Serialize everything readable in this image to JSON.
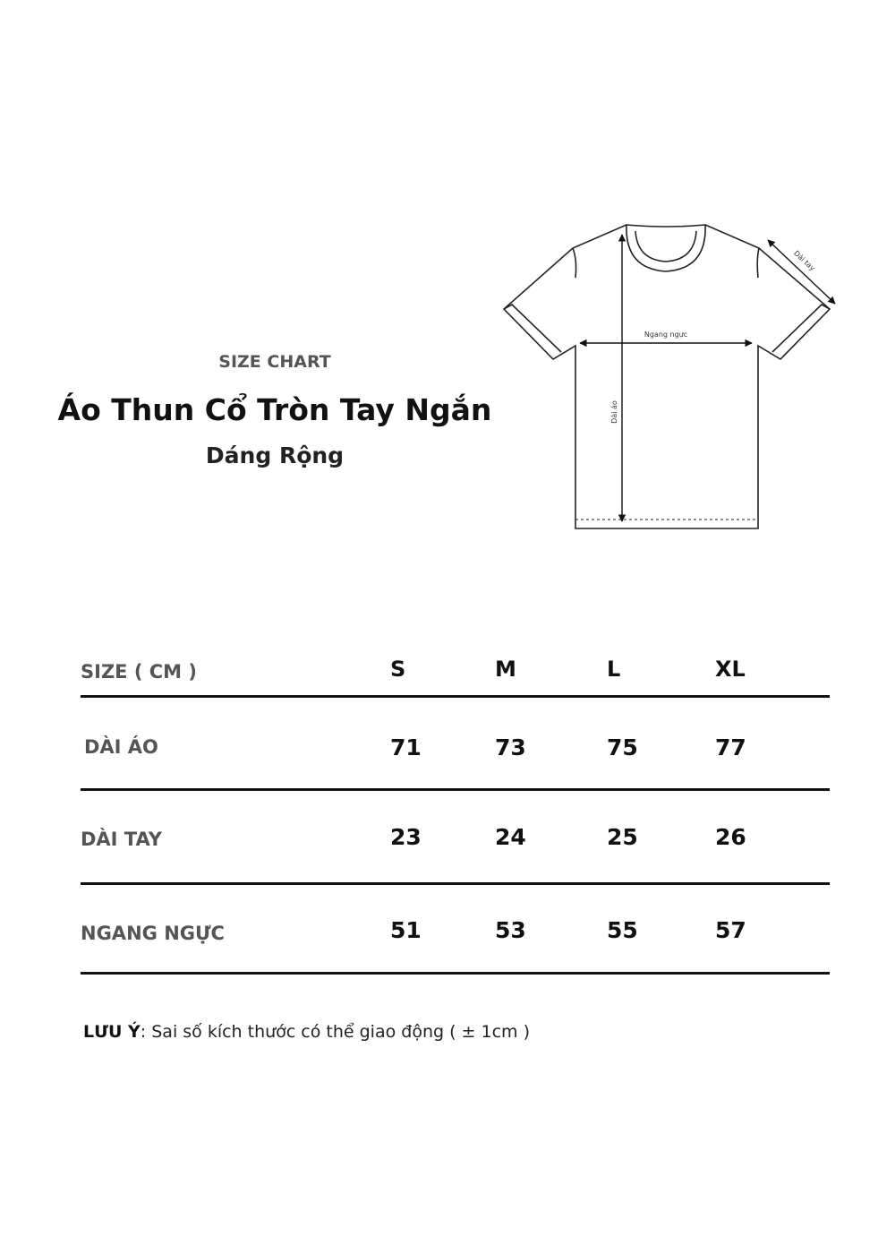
{
  "header": {
    "eyebrow": "SIZE CHART",
    "title": "Áo Thun Cổ Tròn Tay Ngắn",
    "subtitle": "Dáng Rộng"
  },
  "diagram": {
    "labels": {
      "chest": "Ngang ngực",
      "length": "Dài áo",
      "sleeve": "Dài tay"
    }
  },
  "table": {
    "corner_label": "SIZE ( CM )",
    "sizes": [
      "S",
      "M",
      "L",
      "XL"
    ],
    "rows": [
      {
        "label": "DÀI ÁO",
        "values": [
          "71",
          "73",
          "75",
          "77"
        ]
      },
      {
        "label": "DÀI TAY",
        "values": [
          "23",
          "24",
          "25",
          "26"
        ]
      },
      {
        "label": "NGANG NGỰC",
        "values": [
          "51",
          "53",
          "55",
          "57"
        ]
      }
    ]
  },
  "note": {
    "label": "LƯU Ý",
    "text": ": Sai số kích thước có thể giao động ( ± 1cm )"
  }
}
